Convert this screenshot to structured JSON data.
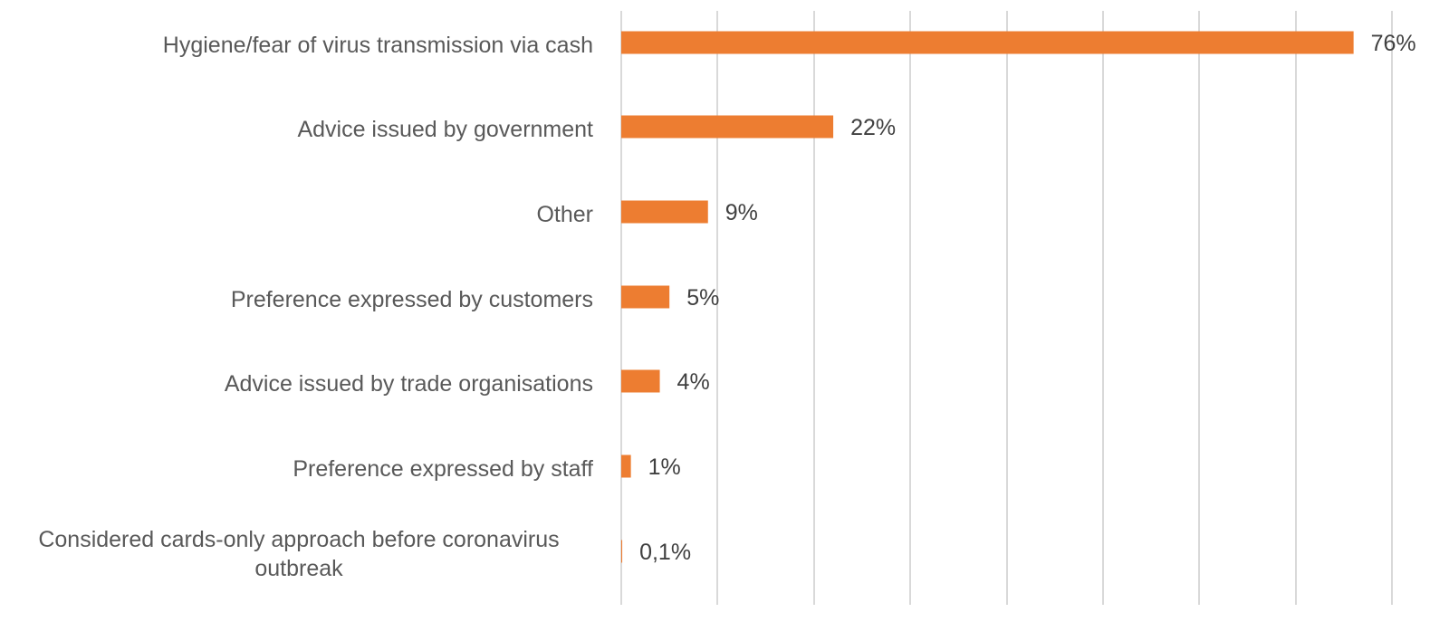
{
  "chart_data": {
    "type": "bar",
    "orientation": "horizontal",
    "title": "",
    "xlabel": "",
    "ylabel": "",
    "categories": [
      "Hygiene/fear of virus transmission via cash",
      "Advice issued by government",
      "Other",
      "Preference expressed by customers",
      "Advice issued by trade organisations",
      "Preference expressed by staff",
      "Considered cards-only approach before coronavirus outbreak"
    ],
    "values": [
      76,
      22,
      9,
      5,
      4,
      1,
      0.1
    ],
    "data_labels": [
      "76%",
      "22%",
      "9%",
      "5%",
      "4%",
      "1%",
      "0,1%"
    ],
    "xlim": [
      0,
      80
    ],
    "grid_step": 10,
    "grid": true,
    "legend": "none",
    "colors": {
      "bar": "#ED7D31",
      "grid": "#D9D9D9",
      "category_text": "#595959",
      "label_text": "#404040"
    }
  }
}
